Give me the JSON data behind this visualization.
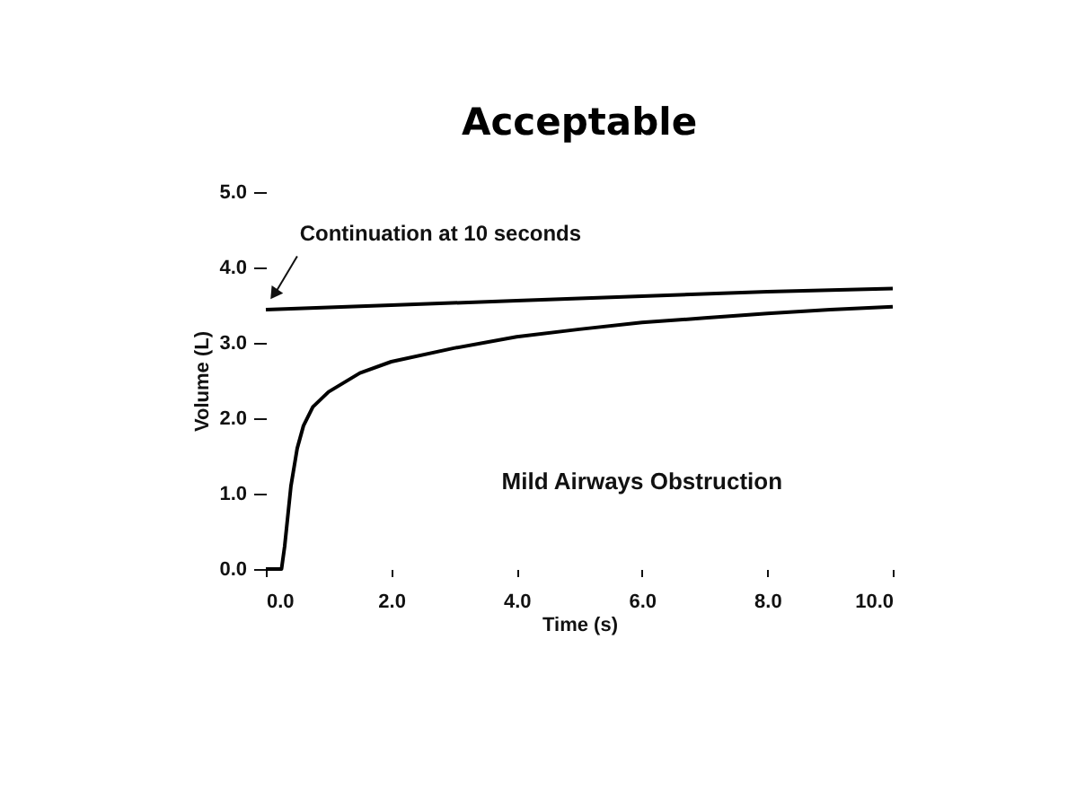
{
  "chart_data": {
    "type": "line",
    "title": "Acceptable",
    "xlabel": "Time (s)",
    "ylabel": "Volume (L)",
    "xlim": [
      0,
      10
    ],
    "xticks": [
      {
        "value": 0,
        "label": "0.0"
      },
      {
        "value": 2,
        "label": "2.0"
      },
      {
        "value": 4,
        "label": "4.0"
      },
      {
        "value": 6,
        "label": "6.0"
      },
      {
        "value": 8,
        "label": "8.0"
      },
      {
        "value": 10,
        "label": "10.0"
      }
    ],
    "ylim": [
      0,
      5
    ],
    "yticks": [
      {
        "value": 0,
        "label": "0.0"
      },
      {
        "value": 1,
        "label": "1.0"
      },
      {
        "value": 2,
        "label": "2.0"
      },
      {
        "value": 3,
        "label": "3.0"
      },
      {
        "value": 4,
        "label": "4.0"
      },
      {
        "value": 5,
        "label": "5.0"
      }
    ],
    "series": [
      {
        "color": "#000000",
        "x": [
          0,
          2,
          4,
          6,
          8,
          10
        ],
        "values": [
          3.44,
          3.5,
          3.56,
          3.62,
          3.68,
          3.72
        ]
      },
      {
        "color": "#000000",
        "x": [
          0,
          0.25,
          0.3,
          0.4,
          0.5,
          0.6,
          0.75,
          1,
          1.5,
          2,
          3,
          4,
          5,
          6,
          7,
          8,
          9,
          10
        ],
        "values": [
          0,
          0,
          0.3,
          1.1,
          1.6,
          1.9,
          2.15,
          2.35,
          2.6,
          2.75,
          2.93,
          3.08,
          3.18,
          3.27,
          3.33,
          3.39,
          3.44,
          3.48
        ]
      }
    ],
    "annotations": [
      {
        "text": "Continuation at 10 seconds",
        "x": 0.1,
        "y": 3.55
      },
      "Mild Airways Obstruction"
    ],
    "grid": false,
    "legend": false,
    "marker": "none",
    "line_style": "solid"
  }
}
